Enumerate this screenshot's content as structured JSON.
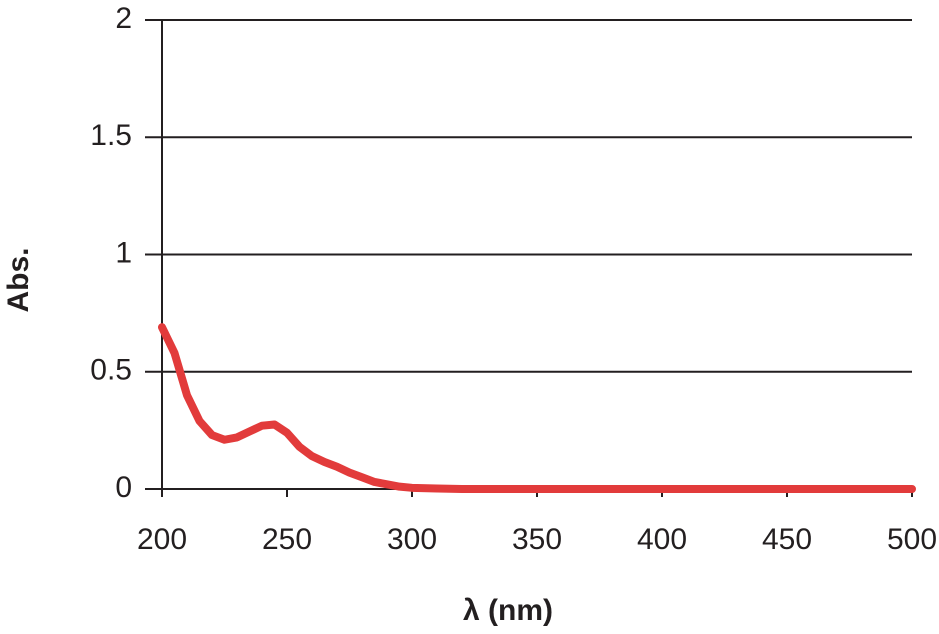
{
  "chart_data": {
    "type": "line",
    "x_label": "λ (nm)",
    "y_label": "Abs.",
    "x": [
      200,
      205,
      210,
      215,
      220,
      225,
      230,
      235,
      240,
      245,
      250,
      255,
      260,
      265,
      270,
      275,
      280,
      285,
      290,
      295,
      300,
      310,
      320,
      350,
      400,
      450,
      500
    ],
    "series": [
      {
        "name": "Absorbance",
        "color": "#e23b3b",
        "values": [
          0.69,
          0.58,
          0.4,
          0.29,
          0.23,
          0.21,
          0.22,
          0.245,
          0.27,
          0.275,
          0.24,
          0.18,
          0.14,
          0.115,
          0.095,
          0.07,
          0.05,
          0.03,
          0.02,
          0.01,
          0.005,
          0.002,
          0,
          0,
          0,
          0,
          0
        ]
      }
    ],
    "xlim": [
      200,
      500
    ],
    "xticks": [
      200,
      250,
      300,
      350,
      400,
      450,
      500
    ],
    "ylim": [
      0,
      2
    ],
    "yticks": [
      0,
      0.5,
      1,
      1.5,
      2
    ],
    "grid": true
  }
}
